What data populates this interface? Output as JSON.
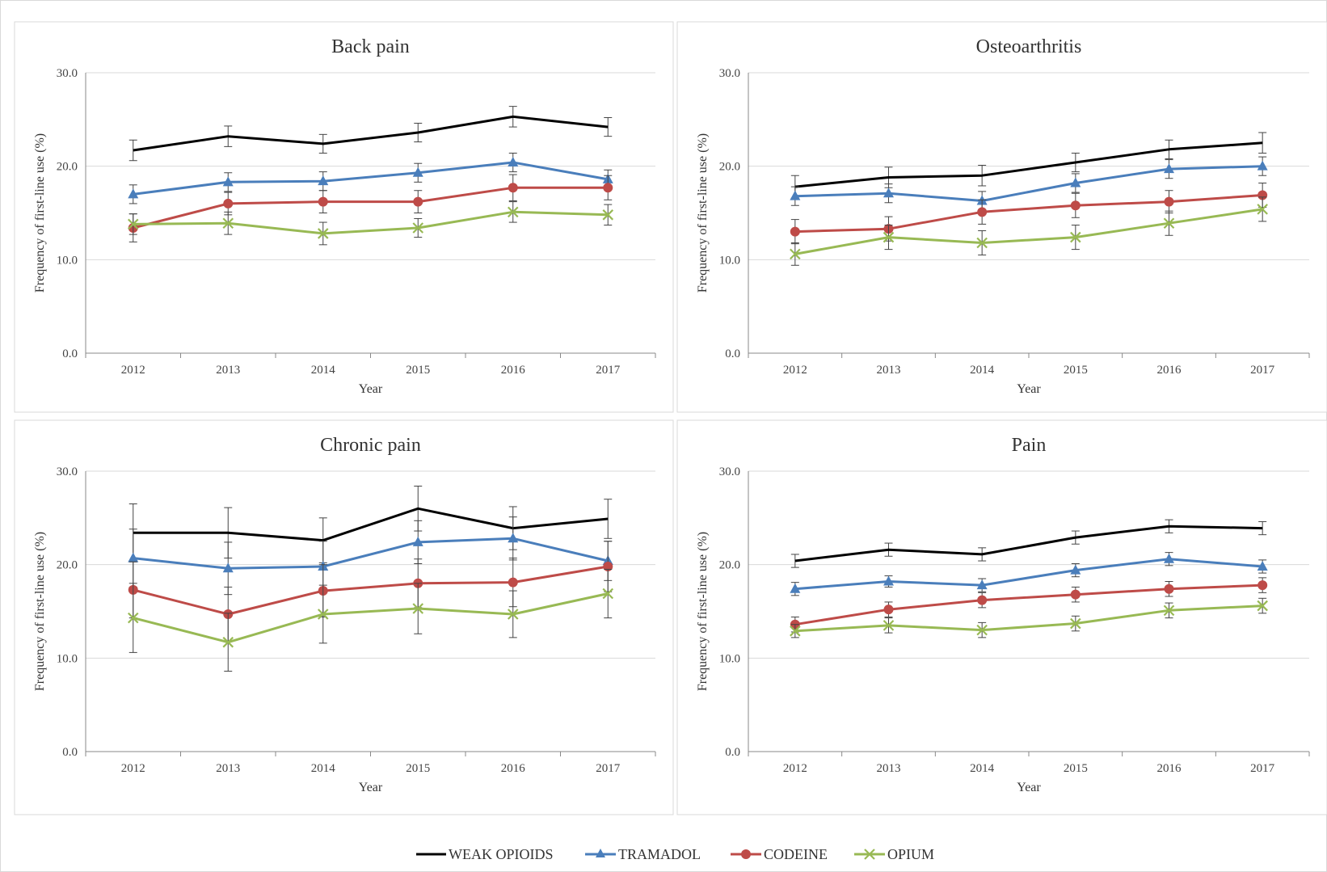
{
  "legend": {
    "series": [
      {
        "name": "WEAK OPIOIDS",
        "color": "#000000",
        "marker": "none"
      },
      {
        "name": "TRAMADOL",
        "color": "#4a7ebb",
        "marker": "triangle"
      },
      {
        "name": "CODEINE",
        "color": "#be4b48",
        "marker": "circle"
      },
      {
        "name": "OPIUM",
        "color": "#98b954",
        "marker": "x"
      }
    ],
    "placement": "bottom-center"
  },
  "chart_data": [
    {
      "type": "line",
      "title": "Back pain",
      "xlabel": "Year",
      "ylabel": "Frequency of first-line use (%)",
      "ylim": [
        0,
        30
      ],
      "yticks": [
        "0.0",
        "10.0",
        "20.0",
        "30.0"
      ],
      "categories": [
        "2012",
        "2013",
        "2014",
        "2015",
        "2016",
        "2017"
      ],
      "grid": true,
      "series": [
        {
          "name": "WEAK OPIOIDS",
          "values": [
            21.7,
            23.2,
            22.4,
            23.6,
            25.3,
            24.2
          ],
          "errors": [
            1.1,
            1.1,
            1.0,
            1.0,
            1.1,
            1.0
          ]
        },
        {
          "name": "TRAMADOL",
          "values": [
            17.0,
            18.3,
            18.4,
            19.3,
            20.4,
            18.6
          ],
          "errors": [
            1.0,
            1.0,
            1.0,
            1.0,
            1.0,
            1.0
          ]
        },
        {
          "name": "CODEINE",
          "values": [
            13.4,
            16.0,
            16.2,
            16.2,
            17.7,
            17.7
          ],
          "errors": [
            1.5,
            1.2,
            1.2,
            1.2,
            1.4,
            1.3
          ]
        },
        {
          "name": "OPIUM",
          "values": [
            13.8,
            13.9,
            12.8,
            13.4,
            15.1,
            14.8
          ],
          "errors": [
            1.1,
            1.2,
            1.2,
            1.0,
            1.1,
            1.1
          ]
        }
      ]
    },
    {
      "type": "line",
      "title": "Osteoarthritis",
      "xlabel": "Year",
      "ylabel": "Frequency of first-line use (%)",
      "ylim": [
        0,
        30
      ],
      "yticks": [
        "0.0",
        "10.0",
        "20.0",
        "30.0"
      ],
      "categories": [
        "2012",
        "2013",
        "2014",
        "2015",
        "2016",
        "2017"
      ],
      "grid": true,
      "series": [
        {
          "name": "WEAK OPIOIDS",
          "values": [
            17.8,
            18.8,
            19.0,
            20.4,
            21.8,
            22.5
          ],
          "errors": [
            1.2,
            1.1,
            1.1,
            1.0,
            1.0,
            1.1
          ]
        },
        {
          "name": "TRAMADOL",
          "values": [
            16.8,
            17.1,
            16.3,
            18.2,
            19.7,
            20.0
          ],
          "errors": [
            1.0,
            1.0,
            1.0,
            1.0,
            1.0,
            1.0
          ]
        },
        {
          "name": "CODEINE",
          "values": [
            13.0,
            13.3,
            15.1,
            15.8,
            16.2,
            16.9
          ],
          "errors": [
            1.3,
            1.3,
            1.3,
            1.3,
            1.2,
            1.3
          ]
        },
        {
          "name": "OPIUM",
          "values": [
            10.6,
            12.4,
            11.8,
            12.4,
            13.9,
            15.4
          ],
          "errors": [
            1.2,
            1.3,
            1.3,
            1.3,
            1.3,
            1.3
          ]
        }
      ]
    },
    {
      "type": "line",
      "title": "Chronic pain",
      "xlabel": "Year",
      "ylabel": "Frequency of first-line use (%)",
      "ylim": [
        0,
        30
      ],
      "yticks": [
        "0.0",
        "10.0",
        "20.0",
        "30.0"
      ],
      "categories": [
        "2012",
        "2013",
        "2014",
        "2015",
        "2016",
        "2017"
      ],
      "grid": true,
      "series": [
        {
          "name": "WEAK OPIOIDS",
          "values": [
            23.4,
            23.4,
            22.6,
            26.0,
            23.9,
            24.9
          ],
          "errors": [
            3.1,
            2.7,
            2.4,
            2.4,
            2.3,
            2.1
          ]
        },
        {
          "name": "TRAMADOL",
          "values": [
            20.7,
            19.6,
            19.8,
            22.4,
            22.8,
            20.4
          ],
          "errors": [
            3.1,
            2.8,
            2.7,
            2.3,
            2.3,
            2.1
          ]
        },
        {
          "name": "CODEINE",
          "values": [
            17.3,
            14.7,
            17.2,
            18.0,
            18.1,
            19.8
          ],
          "errors": [
            3.0,
            2.9,
            2.8,
            2.6,
            2.6,
            2.7
          ]
        },
        {
          "name": "OPIUM",
          "values": [
            14.3,
            11.7,
            14.7,
            15.3,
            14.7,
            16.9
          ],
          "errors": [
            3.7,
            3.1,
            3.1,
            2.7,
            2.5,
            2.6
          ]
        }
      ]
    },
    {
      "type": "line",
      "title": "Pain",
      "xlabel": "Year",
      "ylabel": "Frequency of first-line use (%)",
      "ylim": [
        0,
        30
      ],
      "yticks": [
        "0.0",
        "10.0",
        "20.0",
        "30.0"
      ],
      "categories": [
        "2012",
        "2013",
        "2014",
        "2015",
        "2016",
        "2017"
      ],
      "grid": true,
      "series": [
        {
          "name": "WEAK OPIOIDS",
          "values": [
            20.4,
            21.6,
            21.1,
            22.9,
            24.1,
            23.9
          ],
          "errors": [
            0.7,
            0.7,
            0.7,
            0.7,
            0.7,
            0.7
          ]
        },
        {
          "name": "TRAMADOL",
          "values": [
            17.4,
            18.2,
            17.8,
            19.4,
            20.6,
            19.8
          ],
          "errors": [
            0.7,
            0.6,
            0.7,
            0.7,
            0.7,
            0.7
          ]
        },
        {
          "name": "CODEINE",
          "values": [
            13.6,
            15.2,
            16.2,
            16.8,
            17.4,
            17.8
          ],
          "errors": [
            0.8,
            0.8,
            0.8,
            0.8,
            0.8,
            0.8
          ]
        },
        {
          "name": "OPIUM",
          "values": [
            12.9,
            13.5,
            13.0,
            13.7,
            15.1,
            15.6
          ],
          "errors": [
            0.7,
            0.8,
            0.8,
            0.8,
            0.8,
            0.8
          ]
        }
      ]
    }
  ]
}
